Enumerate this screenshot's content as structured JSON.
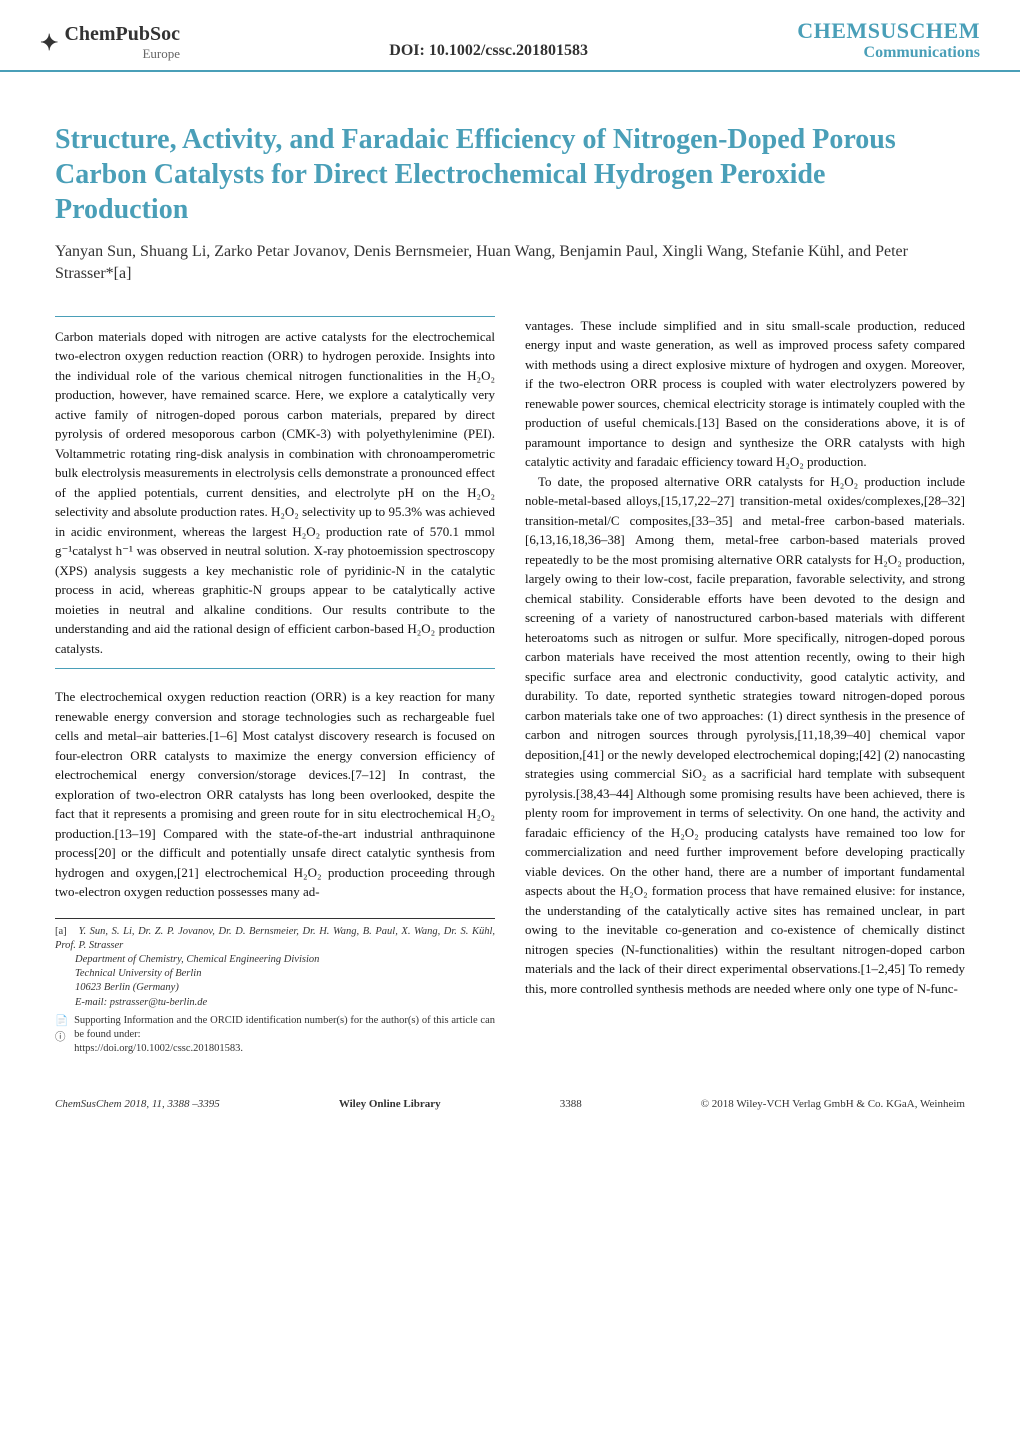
{
  "header": {
    "logo_main": "ChemPubSoc",
    "logo_sub": "Europe",
    "doi": "DOI: 10.1002/cssc.201801583",
    "journal_name": "CHEMSUSCHEM",
    "journal_section": "Communications"
  },
  "title": "Structure, Activity, and Faradaic Efficiency of Nitrogen-Doped Porous Carbon Catalysts for Direct Electrochemical Hydrogen Peroxide Production",
  "authors": "Yanyan Sun, Shuang Li, Zarko Petar Jovanov, Denis Bernsmeier, Huan Wang, Benjamin Paul, Xingli Wang, Stefanie Kühl, and Peter Strasser*[a]",
  "abstract": "Carbon materials doped with nitrogen are active catalysts for the electrochemical two-electron oxygen reduction reaction (ORR) to hydrogen peroxide. Insights into the individual role of the various chemical nitrogen functionalities in the H₂O₂ production, however, have remained scarce. Here, we explore a catalytically very active family of nitrogen-doped porous carbon materials, prepared by direct pyrolysis of ordered mesoporous carbon (CMK-3) with polyethylenimine (PEI). Voltammetric rotating ring-disk analysis in combination with chronoamperometric bulk electrolysis measurements in electrolysis cells demonstrate a pronounced effect of the applied potentials, current densities, and electrolyte pH on the H₂O₂ selectivity and absolute production rates. H₂O₂ selectivity up to 95.3% was achieved in acidic environment, whereas the largest H₂O₂ production rate of 570.1 mmol g⁻¹catalyst h⁻¹ was observed in neutral solution. X-ray photoemission spectroscopy (XPS) analysis suggests a key mechanistic role of pyridinic-N in the catalytic process in acid, whereas graphitic-N groups appear to be catalytically active moieties in neutral and alkaline conditions. Our results contribute to the understanding and aid the rational design of efficient carbon-based H₂O₂ production catalysts.",
  "body_left": "The electrochemical oxygen reduction reaction (ORR) is a key reaction for many renewable energy conversion and storage technologies such as rechargeable fuel cells and metal–air batteries.[1–6] Most catalyst discovery research is focused on four-electron ORR catalysts to maximize the energy conversion efficiency of electrochemical energy conversion/storage devices.[7–12] In contrast, the exploration of two-electron ORR catalysts has long been overlooked, despite the fact that it represents a promising and green route for in situ electrochemical H₂O₂ production.[13–19] Compared with the state-of-the-art industrial anthraquinone process[20] or the difficult and potentially unsafe direct catalytic synthesis from hydrogen and oxygen,[21] electrochemical H₂O₂ production proceeding through two-electron oxygen reduction possesses many ad-",
  "body_right": "vantages. These include simplified and in situ small-scale production, reduced energy input and waste generation, as well as improved process safety compared with methods using a direct explosive mixture of hydrogen and oxygen. Moreover, if the two-electron ORR process is coupled with water electrolyzers powered by renewable power sources, chemical electricity storage is intimately coupled with the production of useful chemicals.[13] Based on the considerations above, it is of paramount importance to design and synthesize the ORR catalysts with high catalytic activity and faradaic efficiency toward H₂O₂ production.",
  "body_right_2": "To date, the proposed alternative ORR catalysts for H₂O₂ production include noble-metal-based alloys,[15,17,22–27] transition-metal oxides/complexes,[28–32] transition-metal/C composites,[33–35] and metal-free carbon-based materials.[6,13,16,18,36–38] Among them, metal-free carbon-based materials proved repeatedly to be the most promising alternative ORR catalysts for H₂O₂ production, largely owing to their low-cost, facile preparation, favorable selectivity, and strong chemical stability. Considerable efforts have been devoted to the design and screening of a variety of nanostructured carbon-based materials with different heteroatoms such as nitrogen or sulfur. More specifically, nitrogen-doped porous carbon materials have received the most attention recently, owing to their high specific surface area and electronic conductivity, good catalytic activity, and durability. To date, reported synthetic strategies toward nitrogen-doped porous carbon materials take one of two approaches: (1) direct synthesis in the presence of carbon and nitrogen sources through pyrolysis,[11,18,39–40] chemical vapor deposition,[41] or the newly developed electrochemical doping;[42] (2) nanocasting strategies using commercial SiO₂ as a sacrificial hard template with subsequent pyrolysis.[38,43–44] Although some promising results have been achieved, there is plenty room for improvement in terms of selectivity. On one hand, the activity and faradaic efficiency of the H₂O₂ producing catalysts have remained too low for commercialization and need further improvement before developing practically viable devices. On the other hand, there are a number of important fundamental aspects about the H₂O₂ formation process that have remained elusive: for instance, the understanding of the catalytically active sites has remained unclear, in part owing to the inevitable co-generation and co-existence of chemically distinct nitrogen species (N-functionalities) within the resultant nitrogen-doped carbon materials and the lack of their direct experimental observations.[1–2,45] To remedy this, more controlled synthesis methods are needed where only one type of N-func-",
  "affiliation": {
    "label": "[a]",
    "authors": "Y. Sun, S. Li, Dr. Z. P. Jovanov, Dr. D. Bernsmeier, Dr. H. Wang, B. Paul, X. Wang, Dr. S. Kühl, Prof. P. Strasser",
    "dept": "Department of Chemistry, Chemical Engineering Division",
    "inst": "Technical University of Berlin",
    "addr": "10623 Berlin (Germany)",
    "email": "E-mail: pstrasser@tu-berlin.de"
  },
  "support": {
    "text": "Supporting Information and the ORCID identification number(s) for the author(s) of this article can be found under:",
    "link": "https://doi.org/10.1002/cssc.201801583."
  },
  "footer": {
    "citation": "ChemSusChem 2018, 11, 3388 –3395",
    "library": "Wiley Online Library",
    "page": "3388",
    "copyright": "© 2018 Wiley-VCH Verlag GmbH & Co. KGaA, Weinheim"
  },
  "colors": {
    "accent": "#4a9fb8",
    "text": "#111111",
    "bg": "#ffffff"
  }
}
